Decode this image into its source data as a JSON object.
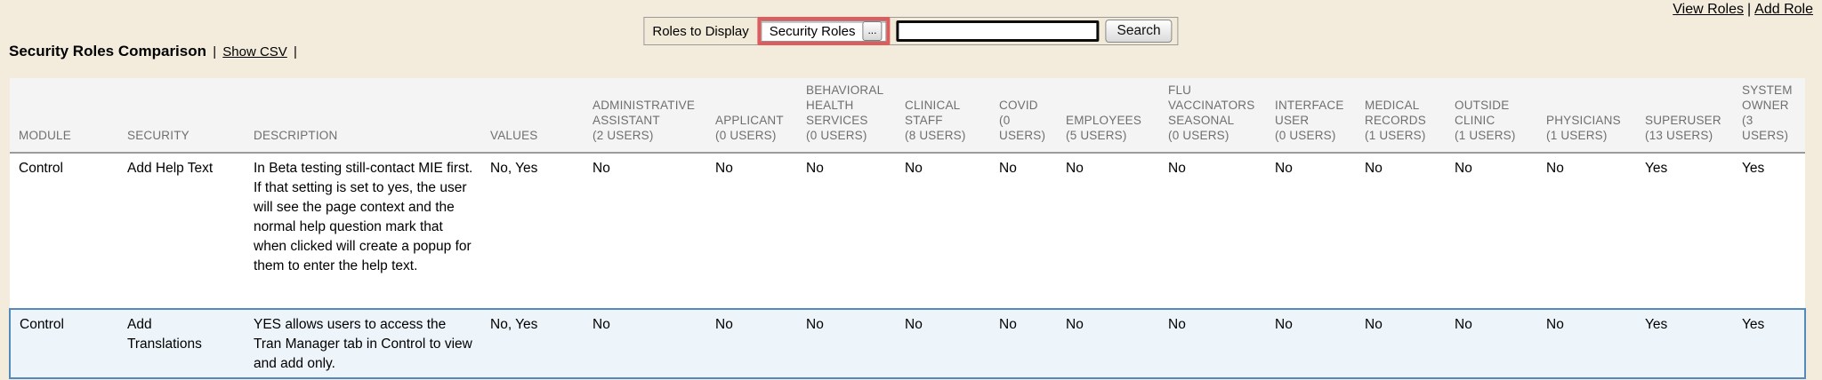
{
  "colors": {
    "page_background": "#f3ecdd",
    "highlight_ring": "#e05c5c",
    "selected_row_background": "#edf5fb",
    "selected_row_border": "#5489bd",
    "header_text": "#6f6f6f"
  },
  "top_links": {
    "view_roles": "View Roles",
    "separator": "|",
    "add_role": "Add Role"
  },
  "toolbar": {
    "roles_to_display_label": "Roles to Display",
    "roles_select_value": "Security Roles",
    "roles_select_more_label": "...",
    "search_value": "",
    "search_button_label": "Search"
  },
  "title": {
    "text": "Security Roles Comparison",
    "sep1": "|",
    "show_csv_label": "Show CSV",
    "sep2": "|"
  },
  "table": {
    "columns": [
      "MODULE",
      "SECURITY",
      "DESCRIPTION",
      "VALUES",
      "ADMINISTRATIVE\nASSISTANT\n(2 USERS)",
      "APPLICANT\n(0 USERS)",
      "BEHAVIORAL\nHEALTH\nSERVICES\n(0 USERS)",
      "CLINICAL\nSTAFF\n(8 USERS)",
      "COVID\n(0\nUSERS)",
      "EMPLOYEES\n(5 USERS)",
      "FLU\nVACCINATORS\nSEASONAL\n(0 USERS)",
      "INTERFACE\nUSER\n(0 USERS)",
      "MEDICAL\nRECORDS\n(1 USERS)",
      "OUTSIDE\nCLINIC\n(1 USERS)",
      "PHYSICIANS\n(1 USERS)",
      "SUPERUSER\n(13 USERS)",
      "SYSTEM\nOWNER\n(3 USERS)"
    ],
    "rows": [
      {
        "module": "Control",
        "security": "Add Help Text",
        "description": "In Beta testing still-contact MIE first. If that setting is set to yes, the user will see the page context and the normal help question mark that when clicked will create a popup for them to enter the help text.",
        "values": "No, Yes",
        "roles": [
          "No",
          "No",
          "No",
          "No",
          "No",
          "No",
          "No",
          "No",
          "No",
          "No",
          "No",
          "Yes",
          "Yes"
        ]
      },
      {
        "module": "Control",
        "security": "Add Translations",
        "description": "YES allows users to access the Tran Manager tab in Control to view and add only.",
        "values": "No, Yes",
        "roles": [
          "No",
          "No",
          "No",
          "No",
          "No",
          "No",
          "No",
          "No",
          "No",
          "No",
          "No",
          "Yes",
          "Yes"
        ]
      }
    ]
  }
}
